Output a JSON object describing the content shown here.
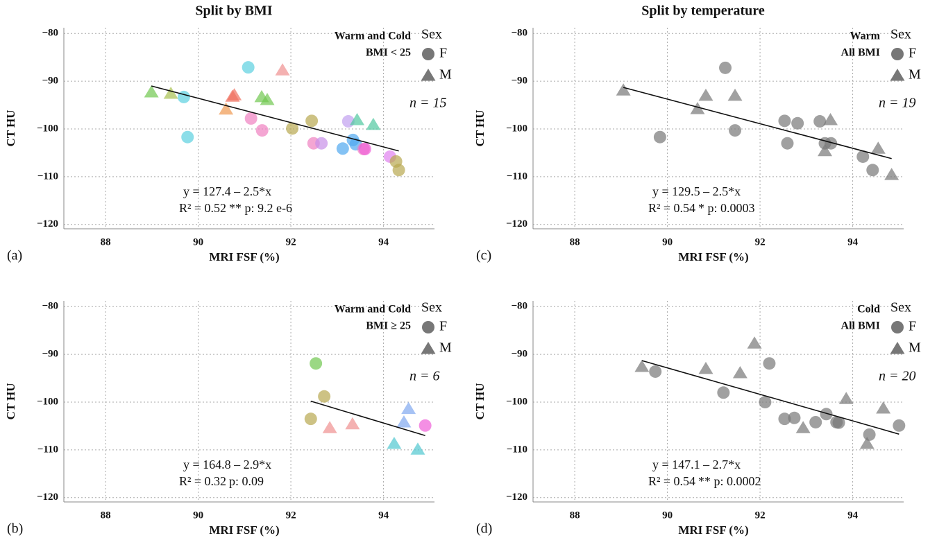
{
  "chart_data": [
    {
      "type": "scatter",
      "title": "Split by BMI",
      "panel_label": "(a)",
      "xlabel": "MRI FSF (%)",
      "ylabel": "CT HU",
      "group_label": [
        "Warm and Cold",
        "BMI < 25"
      ],
      "legend_title": "Sex",
      "n_label": "n = 15",
      "equation": "y = 127.4 – 2.5*x",
      "r2": "R² = 0.52",
      "p_label": "** p: 9.2 e-6",
      "xlim": [
        87.1,
        95.1
      ],
      "ylim": [
        -120.9,
        -78.8
      ],
      "xticks": [
        88,
        90,
        92,
        94
      ],
      "yticks": [
        {
          "value": -80,
          "label": "−80"
        },
        {
          "value": -90,
          "label": "−90"
        },
        {
          "value": -100,
          "label": "−100"
        },
        {
          "value": -110,
          "label": "−110"
        },
        {
          "value": -120,
          "label": "−120"
        }
      ],
      "grid": true,
      "series": [
        {
          "name": "F",
          "shape": "circle",
          "color": "#777777",
          "x": [
            91.08,
            89.69,
            89.77,
            91.14,
            91.38,
            92.03,
            92.45,
            92.49,
            92.66,
            93.24,
            93.12,
            93.34,
            93.4,
            93.57,
            93.6,
            94.14,
            94.27,
            94.33
          ],
          "values": [
            -87.1,
            -93.3,
            -101.7,
            -97.8,
            -100.3,
            -99.9,
            -98.3,
            -103.0,
            -103.0,
            -98.4,
            -104.1,
            -102.3,
            -103.2,
            -104.2,
            -104.2,
            -105.8,
            -106.8,
            -108.6
          ],
          "point_colors": [
            "#5bd0e0",
            "#5bd0e0",
            "#5bd0e0",
            "#f080c0",
            "#f080c0",
            "#b8a850",
            "#b8a850",
            "#f080c0",
            "#c890e8",
            "#c0a0f0",
            "#50a8f0",
            "#50a8f0",
            "#50a8f0",
            "#f080c0",
            "#f060d8",
            "#e080f0",
            "#b8a850",
            "#b8a850"
          ]
        },
        {
          "name": "M",
          "shape": "triangle",
          "color": "#777777",
          "x": [
            88.99,
            89.41,
            90.6,
            90.74,
            90.78,
            91.37,
            91.49,
            91.82,
            93.43,
            93.78
          ],
          "values": [
            -92.3,
            -92.6,
            -95.9,
            -93.2,
            -92.9,
            -93.3,
            -93.9,
            -87.7,
            -98.1,
            -99.1
          ],
          "point_colors": [
            "#70c850",
            "#a8c050",
            "#f09850",
            "#f07060",
            "#f07060",
            "#70c850",
            "#70c850",
            "#f09090",
            "#50c8a0",
            "#50c8a0"
          ]
        }
      ],
      "fit_line": {
        "x": [
          88.99,
          94.33
        ],
        "y": [
          -91.0,
          -104.6
        ]
      }
    },
    {
      "type": "scatter",
      "panel_label": "(b)",
      "xlabel": "MRI FSF (%)",
      "ylabel": "CT HU",
      "group_label": [
        "Warm and Cold",
        "BMI ≥ 25"
      ],
      "legend_title": "Sex",
      "n_label": "n = 6",
      "equation": "y = 164.8 – 2.9*x",
      "r2": "R² = 0.32",
      "p_label": "p: 0.09",
      "xlim": [
        87.1,
        95.1
      ],
      "ylim": [
        -120.9,
        -78.8
      ],
      "xticks": [
        88,
        90,
        92,
        94
      ],
      "yticks": [
        {
          "value": -80,
          "label": "−80"
        },
        {
          "value": -90,
          "label": "−90"
        },
        {
          "value": -100,
          "label": "−100"
        },
        {
          "value": -110,
          "label": "−110"
        },
        {
          "value": -120,
          "label": "−120"
        }
      ],
      "grid": true,
      "series": [
        {
          "name": "F",
          "shape": "circle",
          "color": "#777777",
          "x": [
            92.54,
            92.72,
            92.43,
            94.9
          ],
          "values": [
            -91.9,
            -98.8,
            -103.5,
            -104.9
          ],
          "point_colors": [
            "#70c850",
            "#b8a850",
            "#b8a850",
            "#f060d8"
          ]
        },
        {
          "name": "M",
          "shape": "triangle",
          "color": "#777777",
          "x": [
            92.84,
            93.33,
            94.23,
            94.44,
            94.54,
            94.74
          ],
          "values": [
            -105.4,
            -104.6,
            -108.7,
            -104.2,
            -101.4,
            -109.9
          ],
          "point_colors": [
            "#f09090",
            "#f09090",
            "#50c8d0",
            "#80a8f0",
            "#80a8f0",
            "#50c8d0"
          ]
        }
      ],
      "fit_line": {
        "x": [
          92.43,
          94.9
        ],
        "y": [
          -99.8,
          -107.0
        ]
      }
    },
    {
      "type": "scatter",
      "title": "Split by temperature",
      "panel_label": "(c)",
      "xlabel": "MRI FSF (%)",
      "ylabel": "CT HU",
      "group_label": [
        "Warm",
        "All BMI"
      ],
      "legend_title": "Sex",
      "n_label": "n = 19",
      "equation": "y = 129.5 – 2.5*x",
      "r2": "R² = 0.54",
      "p_label": "* p: 0.0003",
      "xlim": [
        87.1,
        95.1
      ],
      "ylim": [
        -120.9,
        -78.8
      ],
      "xticks": [
        88,
        90,
        92,
        94
      ],
      "yticks": [
        {
          "value": -80,
          "label": "−80"
        },
        {
          "value": -90,
          "label": "−90"
        },
        {
          "value": -100,
          "label": "−100"
        },
        {
          "value": -110,
          "label": "−110"
        },
        {
          "value": -120,
          "label": "−120"
        }
      ],
      "grid": true,
      "series": [
        {
          "name": "F",
          "shape": "circle",
          "color": "#777777",
          "x": [
            91.25,
            89.84,
            91.46,
            92.53,
            92.81,
            92.59,
            93.29,
            93.4,
            93.53,
            94.22,
            94.43
          ],
          "values": [
            -87.2,
            -101.7,
            -100.3,
            -98.3,
            -98.8,
            -103.0,
            -98.4,
            -103.0,
            -103.0,
            -105.8,
            -108.6
          ]
        },
        {
          "name": "M",
          "shape": "triangle",
          "color": "#777777",
          "x": [
            89.05,
            90.83,
            90.65,
            91.46,
            93.52,
            93.4,
            94.55,
            94.84
          ],
          "values": [
            -91.9,
            -93.0,
            -95.8,
            -93.0,
            -98.1,
            -104.6,
            -104.1,
            -109.6
          ]
        }
      ],
      "fit_line": {
        "x": [
          89.05,
          94.84
        ],
        "y": [
          -91.3,
          -106.2
        ]
      }
    },
    {
      "type": "scatter",
      "panel_label": "(d)",
      "xlabel": "MRI FSF (%)",
      "ylabel": "CT HU",
      "group_label": [
        "Cold",
        "All BMI"
      ],
      "legend_title": "Sex",
      "n_label": "n = 20",
      "equation": "y = 147.1 – 2.7*x",
      "r2": "R² = 0.54",
      "p_label": "** p: 0.0002",
      "xlim": [
        87.1,
        95.1
      ],
      "ylim": [
        -120.9,
        -78.8
      ],
      "xticks": [
        88,
        90,
        92,
        94
      ],
      "yticks": [
        {
          "value": -80,
          "label": "−80"
        },
        {
          "value": -90,
          "label": "−90"
        },
        {
          "value": -100,
          "label": "−100"
        },
        {
          "value": -110,
          "label": "−110"
        },
        {
          "value": -120,
          "label": "−120"
        }
      ],
      "grid": true,
      "series": [
        {
          "name": "F",
          "shape": "circle",
          "color": "#777777",
          "x": [
            89.74,
            91.21,
            92.2,
            92.11,
            92.53,
            92.74,
            93.2,
            93.43,
            93.65,
            93.7,
            94.36,
            95.0
          ],
          "values": [
            -93.6,
            -98.0,
            -91.9,
            -100.0,
            -103.5,
            -103.3,
            -104.2,
            -102.5,
            -104.2,
            -104.3,
            -106.8,
            -104.9
          ]
        },
        {
          "name": "M",
          "shape": "triangle",
          "color": "#777777",
          "x": [
            89.45,
            90.83,
            91.57,
            91.88,
            92.93,
            93.86,
            94.31,
            94.66
          ],
          "values": [
            -92.6,
            -93.0,
            -93.9,
            -87.7,
            -105.4,
            -99.3,
            -108.7,
            -101.3
          ]
        }
      ],
      "fit_line": {
        "x": [
          89.45,
          95.0
        ],
        "y": [
          -91.3,
          -106.7
        ]
      }
    }
  ]
}
